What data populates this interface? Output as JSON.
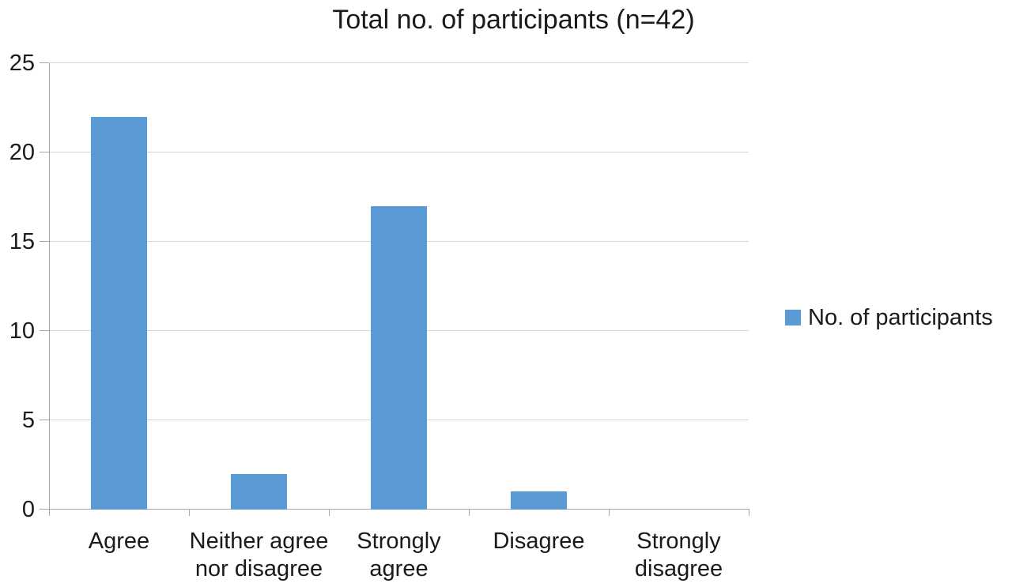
{
  "chart_data": {
    "type": "bar",
    "title": "Total no. of participants (n=42)",
    "categories": [
      "Agree",
      "Neither agree\nnor disagree",
      "Strongly\nagree",
      "Disagree",
      "Strongly\ndisagree"
    ],
    "series": [
      {
        "name": "No. of participants",
        "values": [
          22,
          2,
          17,
          1,
          0
        ]
      }
    ],
    "xlabel": "",
    "ylabel": "",
    "ylim": [
      0,
      25
    ],
    "yticks": [
      0,
      5,
      10,
      15,
      20,
      25
    ],
    "grid": true,
    "legend_position": "right",
    "colors": {
      "bar": "#5B9BD5",
      "gridline": "#D6D6D6",
      "axis": "#A6A6A6",
      "text": "#1A1A1A",
      "background": "#FFFFFF"
    }
  }
}
